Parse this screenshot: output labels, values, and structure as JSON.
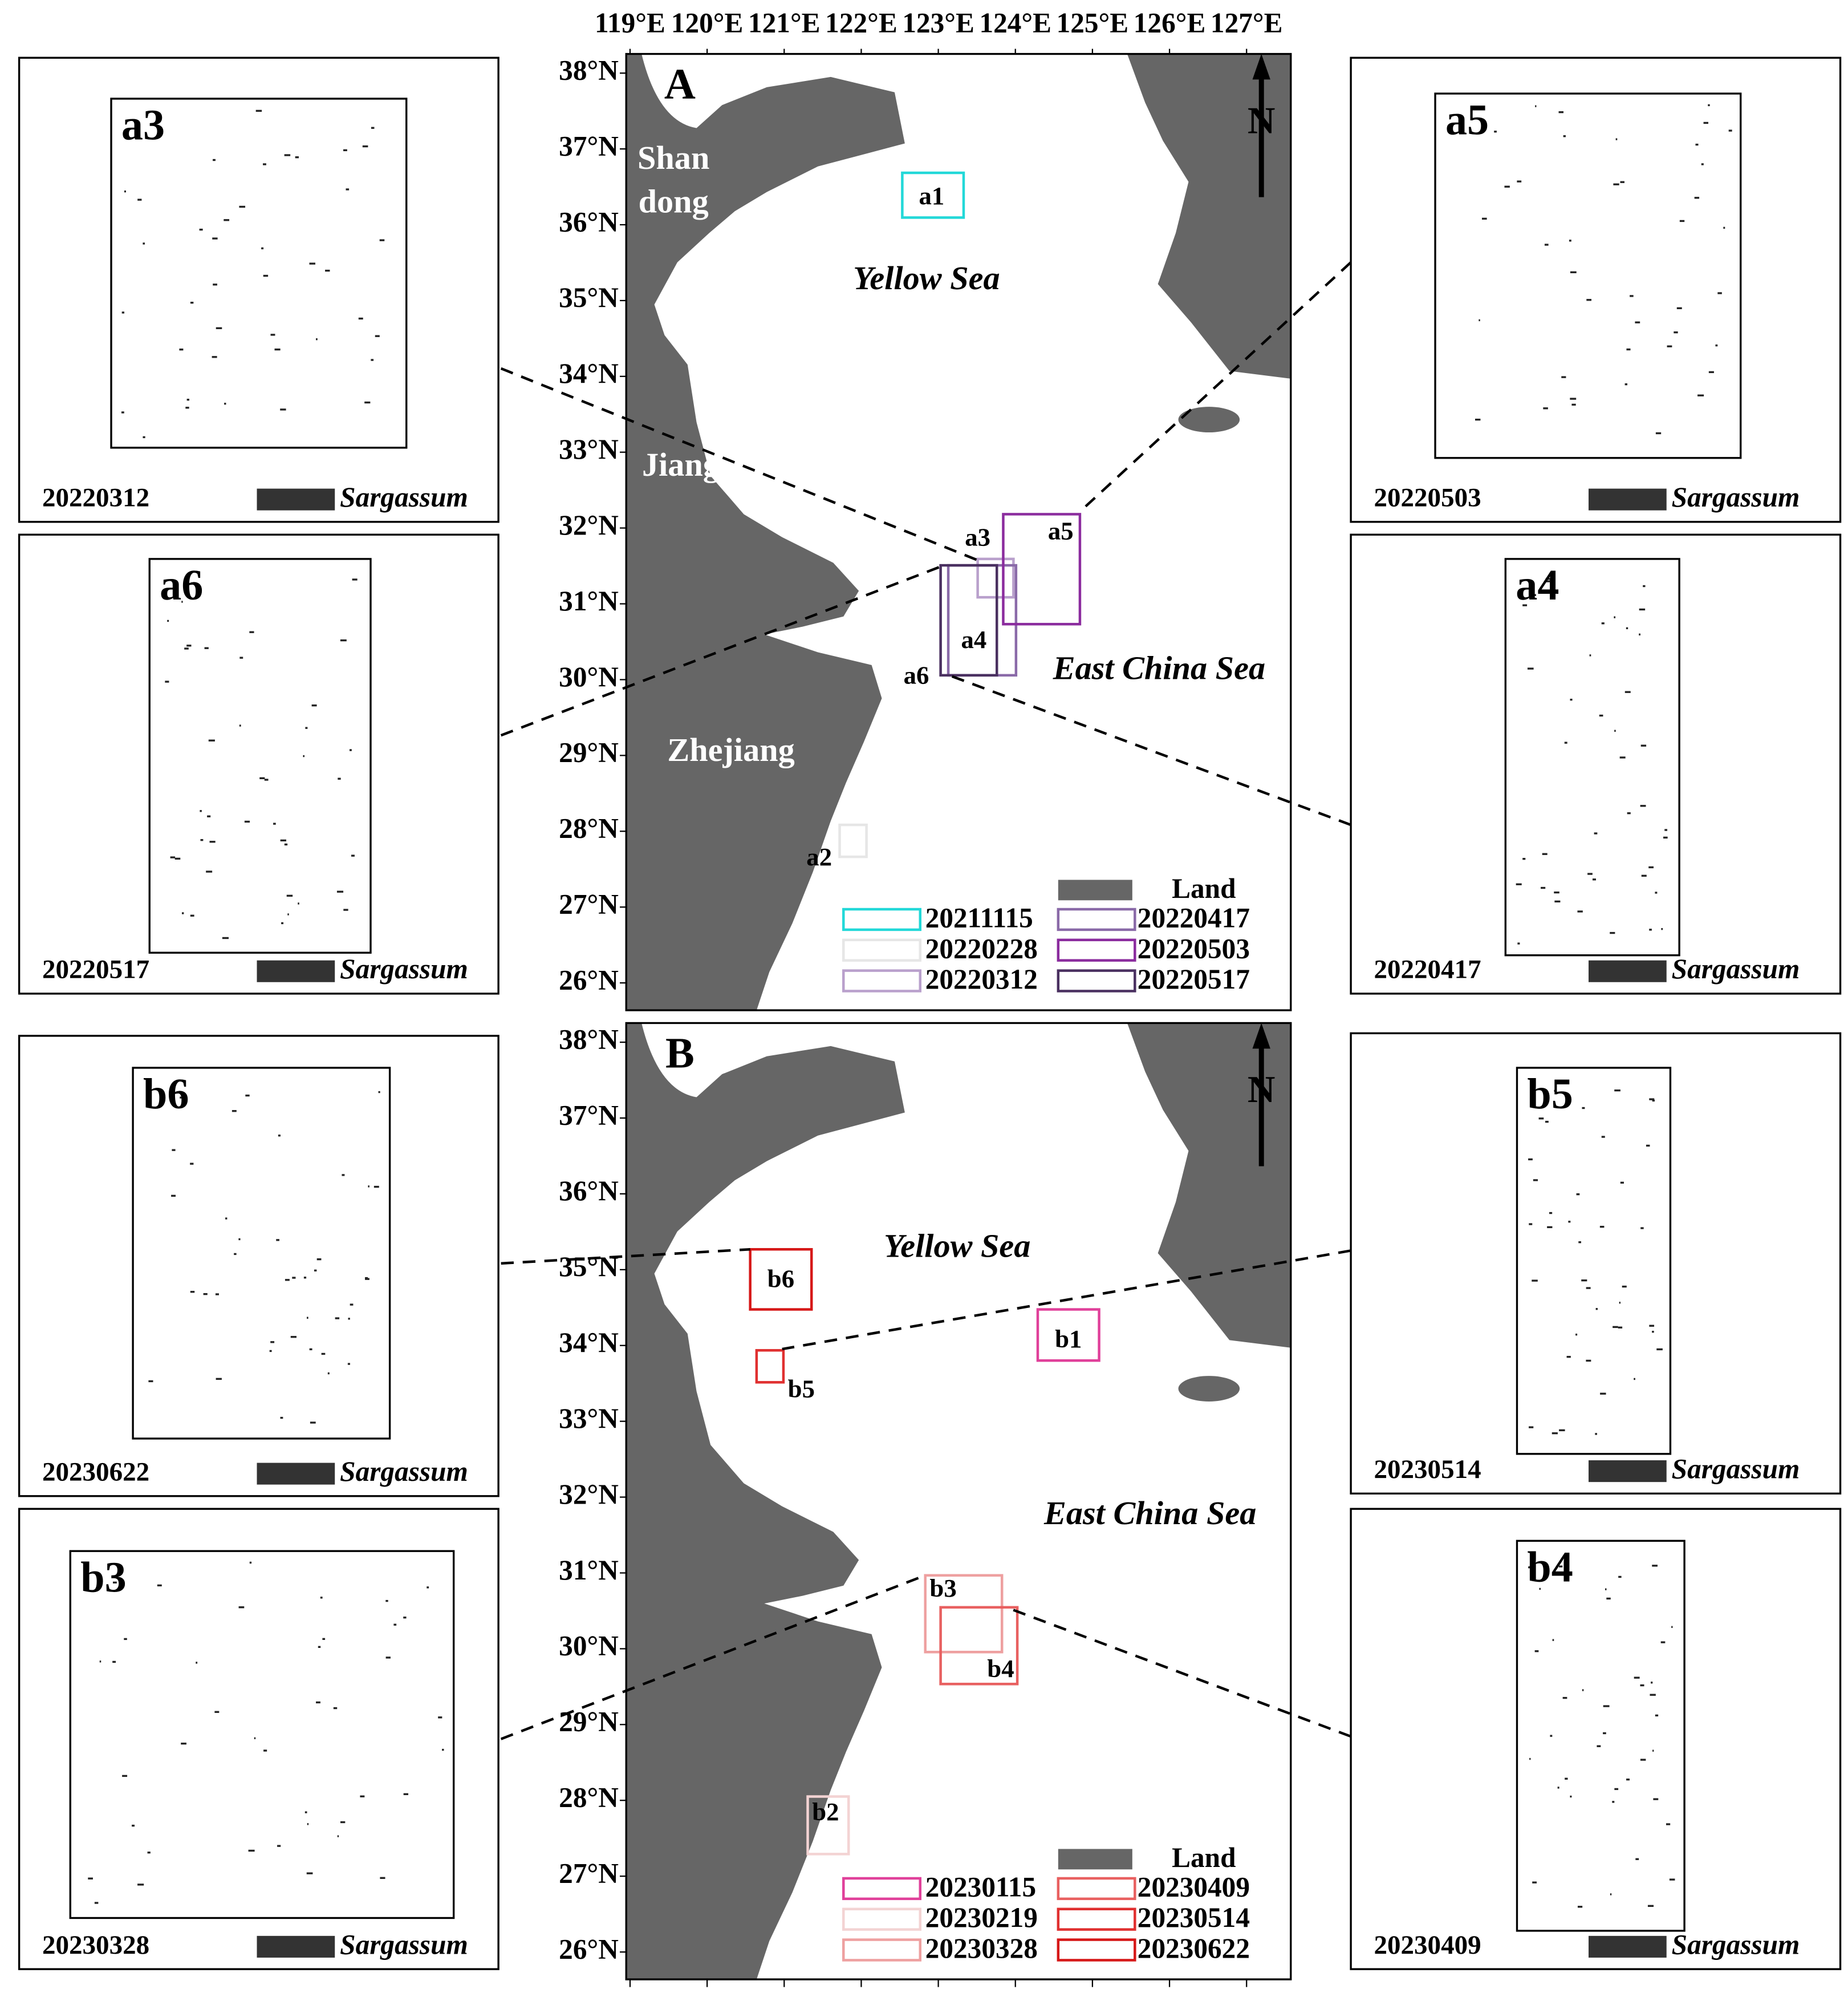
{
  "maps": [
    {
      "panel": "A",
      "lon_ticks": [
        "119°E",
        "120°E",
        "121°E",
        "122°E",
        "123°E",
        "124°E",
        "125°E",
        "126°E",
        "127°E"
      ],
      "lat_ticks": [
        "38°N",
        "37°N",
        "36°N",
        "35°N",
        "34°N",
        "33°N",
        "32°N",
        "31°N",
        "30°N",
        "29°N",
        "28°N",
        "27°N",
        "26°N"
      ],
      "north": "N",
      "places": [
        "Shan",
        "dong",
        "Jiangsu",
        "Zhejiang"
      ],
      "seas": [
        "Yellow Sea",
        "East China Sea"
      ],
      "regions": [
        {
          "label": "a1",
          "color": "#22d8d8"
        },
        {
          "label": "a2",
          "color": "#e6e6e6"
        },
        {
          "label": "a3",
          "color": "#b9a0cc"
        },
        {
          "label": "a4",
          "color": "#8a6aa8"
        },
        {
          "label": "a5",
          "color": "#8b2c9e"
        },
        {
          "label": "a6",
          "color": "#4a3060"
        }
      ],
      "land_label": "Land",
      "legend": [
        {
          "date": "20211115",
          "color": "#22d8d8"
        },
        {
          "date": "20220228",
          "color": "#e6e6e6"
        },
        {
          "date": "20220312",
          "color": "#b9a0cc"
        },
        {
          "date": "20220417",
          "color": "#8a6aa8"
        },
        {
          "date": "20220503",
          "color": "#8b2c9e"
        },
        {
          "date": "20220517",
          "color": "#4a3060"
        }
      ]
    },
    {
      "panel": "B",
      "lat_ticks": [
        "38°N",
        "37°N",
        "36°N",
        "35°N",
        "34°N",
        "33°N",
        "32°N",
        "31°N",
        "30°N",
        "29°N",
        "28°N",
        "27°N",
        "26°N"
      ],
      "north": "N",
      "seas": [
        "Yellow Sea",
        "East China Sea"
      ],
      "regions": [
        {
          "label": "b1",
          "color": "#e0409a"
        },
        {
          "label": "b2",
          "color": "#f3d3d3"
        },
        {
          "label": "b3",
          "color": "#eea0a0"
        },
        {
          "label": "b4",
          "color": "#e86060"
        },
        {
          "label": "b5",
          "color": "#e03030"
        },
        {
          "label": "b6",
          "color": "#d61818"
        }
      ],
      "land_label": "Land",
      "legend": [
        {
          "date": "20230115",
          "color": "#e0409a"
        },
        {
          "date": "20230219",
          "color": "#f3d3d3"
        },
        {
          "date": "20230328",
          "color": "#eea0a0"
        },
        {
          "date": "20230409",
          "color": "#e86060"
        },
        {
          "date": "20230514",
          "color": "#e03030"
        },
        {
          "date": "20230622",
          "color": "#d61818"
        }
      ]
    }
  ],
  "insets": [
    {
      "label": "a3",
      "date": "20220312",
      "key": "Sargassum"
    },
    {
      "label": "a6",
      "date": "20220517",
      "key": "Sargassum"
    },
    {
      "label": "a5",
      "date": "20220503",
      "key": "Sargassum"
    },
    {
      "label": "a4",
      "date": "20220417",
      "key": "Sargassum"
    },
    {
      "label": "b6",
      "date": "20230622",
      "key": "Sargassum"
    },
    {
      "label": "b3",
      "date": "20230328",
      "key": "Sargassum"
    },
    {
      "label": "b5",
      "date": "20230514",
      "key": "Sargassum"
    },
    {
      "label": "b4",
      "date": "20230409",
      "key": "Sargassum"
    }
  ]
}
